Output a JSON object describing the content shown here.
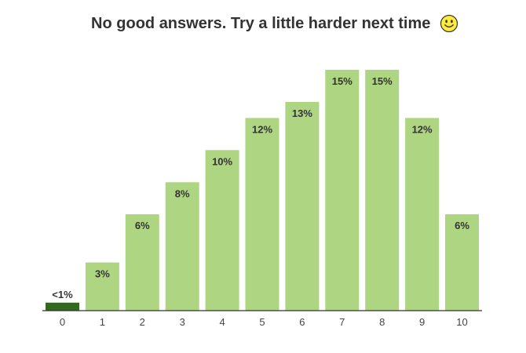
{
  "chart_data": {
    "type": "bar",
    "title": "No good answers. Try a little harder next time",
    "title_icon": "smiley-icon",
    "categories": [
      "0",
      "1",
      "2",
      "3",
      "4",
      "5",
      "6",
      "7",
      "8",
      "9",
      "10"
    ],
    "values": [
      0.5,
      3,
      6,
      8,
      10,
      12,
      13,
      15,
      15,
      12,
      6
    ],
    "data_labels": [
      "<1%",
      "3%",
      "6%",
      "8%",
      "10%",
      "12%",
      "13%",
      "15%",
      "15%",
      "12%",
      "6%"
    ],
    "unit": "%",
    "xlabel": "",
    "ylabel": "",
    "ylim": [
      0,
      15
    ],
    "grid": false,
    "legend": "none",
    "colors": {
      "bar": "#aed581",
      "highlight_bar": "#33691e",
      "axis": "#333333",
      "smiley_face": "#ffeb3b",
      "smiley_outline": "#333333"
    },
    "highlight_index": 0
  }
}
